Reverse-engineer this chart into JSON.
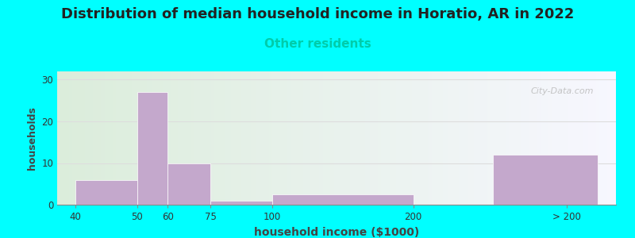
{
  "title": "Distribution of median household income in Horatio, AR in 2022",
  "subtitle": "Other residents",
  "subtitle_color": "#00CCAA",
  "xlabel": "household income ($1000)",
  "ylabel": "households",
  "background_color": "#00FFFF",
  "bar_color": "#C4A8CC",
  "bar_edge_color": "#FFFFFF",
  "title_fontsize": 13,
  "subtitle_fontsize": 11,
  "xlabel_fontsize": 10,
  "ylabel_fontsize": 9,
  "ylim": [
    0,
    32
  ],
  "yticks": [
    0,
    10,
    20,
    30
  ],
  "tick_labels": [
    "40",
    "50",
    "60",
    "75",
    "100",
    "200",
    "> 200"
  ],
  "tick_positions": [
    0,
    1,
    1.5,
    2.2,
    3.2,
    5.5,
    8.0
  ],
  "bar_lefts": [
    0,
    1,
    1.5,
    2.2,
    3.2,
    6.8
  ],
  "bar_rights": [
    1,
    1.5,
    2.2,
    3.2,
    5.5,
    8.5
  ],
  "bar_heights": [
    6,
    27,
    10,
    1,
    2.5,
    12
  ],
  "watermark": "City-Data.com",
  "grid_color": "#DDDDDD",
  "xlim_left": -0.3,
  "xlim_right": 8.8
}
